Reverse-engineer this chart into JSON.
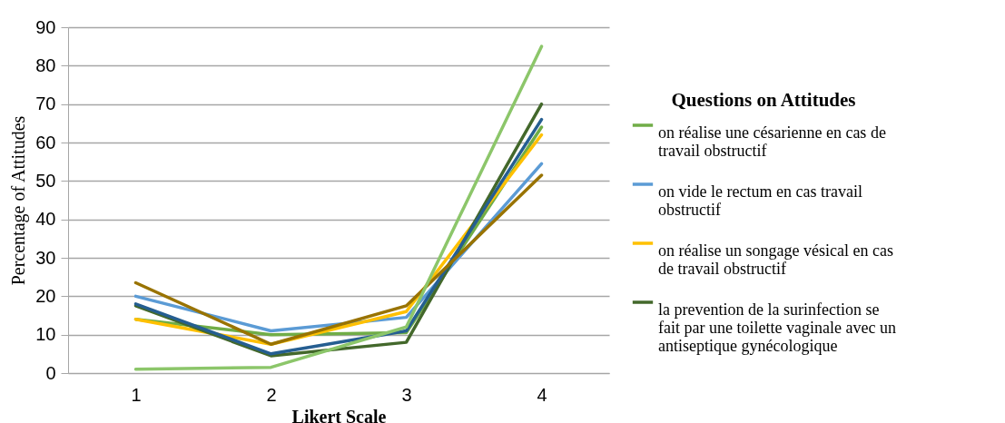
{
  "chart_data": {
    "type": "line",
    "xlabel": "Likert Scale",
    "ylabel": "Percentage of Attitudes",
    "legend_title": "Questions on Attitudes",
    "categories": [
      "1",
      "2",
      "3",
      "4"
    ],
    "series": [
      {
        "name": "on réalise une césarienne en cas de travail obstructif",
        "color": "#70ad47",
        "values": [
          14,
          10,
          10.5,
          64
        ]
      },
      {
        "name": "on vide le rectum en cas travail obstructif",
        "color": "#5b9bd5",
        "values": [
          20,
          11,
          14.5,
          54.5
        ]
      },
      {
        "name": "on réalise un songage vésical en cas de travail obstructif",
        "color": "#ffc000",
        "values": [
          14,
          7.5,
          16,
          62
        ]
      },
      {
        "name": "la prevention de la surinfection se fait par une toilette vaginale avec un antiseptique gynécologique",
        "color": "#43682b",
        "values": [
          17.5,
          4.5,
          8,
          70
        ]
      },
      {
        "color": "#255e91",
        "values": [
          18,
          5,
          11,
          66
        ]
      },
      {
        "color": "#997300",
        "values": [
          23.5,
          7.5,
          17.5,
          51.5
        ]
      },
      {
        "color": "#8cc66a",
        "values": [
          1,
          1.5,
          12,
          85
        ]
      }
    ],
    "ylim": [
      0,
      90
    ],
    "yticks": [
      0,
      10,
      20,
      30,
      40,
      50,
      60,
      70,
      80,
      90
    ],
    "grid": "y",
    "legend": "right",
    "marker": "none",
    "line_style": "solid"
  }
}
